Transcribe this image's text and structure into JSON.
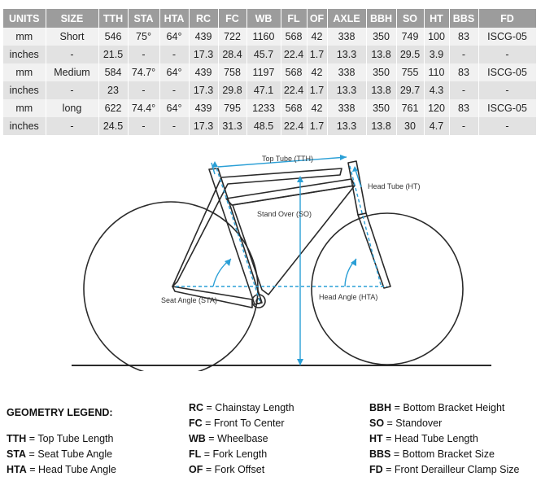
{
  "geometry_table": {
    "headers": [
      "UNITS",
      "SIZE",
      "TTH",
      "STA",
      "HTA",
      "RC",
      "FC",
      "WB",
      "FL",
      "OF",
      "AXLE",
      "BBH",
      "SO",
      "HT",
      "BBS",
      "FD"
    ],
    "rows": [
      [
        "mm",
        "Short",
        "546",
        "75°",
        "64°",
        "439",
        "722",
        "1160",
        "568",
        "42",
        "338",
        "350",
        "749",
        "100",
        "83",
        "ISCG-05"
      ],
      [
        "inches",
        "-",
        "21.5",
        "-",
        "-",
        "17.3",
        "28.4",
        "45.7",
        "22.4",
        "1.7",
        "13.3",
        "13.8",
        "29.5",
        "3.9",
        "-",
        "-"
      ],
      [
        "mm",
        "Medium",
        "584",
        "74.7°",
        "64°",
        "439",
        "758",
        "1197",
        "568",
        "42",
        "338",
        "350",
        "755",
        "110",
        "83",
        "ISCG-05"
      ],
      [
        "inches",
        "-",
        "23",
        "-",
        "-",
        "17.3",
        "29.8",
        "47.1",
        "22.4",
        "1.7",
        "13.3",
        "13.8",
        "29.7",
        "4.3",
        "-",
        "-"
      ],
      [
        "mm",
        "long",
        "622",
        "74.4°",
        "64°",
        "439",
        "795",
        "1233",
        "568",
        "42",
        "338",
        "350",
        "761",
        "120",
        "83",
        "ISCG-05"
      ],
      [
        "inches",
        "-",
        "24.5",
        "-",
        "-",
        "17.3",
        "31.3",
        "48.5",
        "22.4",
        "1.7",
        "13.3",
        "13.8",
        "30",
        "4.7",
        "-",
        "-"
      ]
    ]
  },
  "diagram": {
    "labels": {
      "top_tube": "Top Tube (TTH)",
      "head_tube": "Head Tube (HT)",
      "stand_over": "Stand Over (SO)",
      "seat_angle": "Seat Angle (STA)",
      "head_angle": "Head Angle (HTA)"
    },
    "colors": {
      "frame": "#2a2a2a",
      "dimension": "#2a9fd6"
    }
  },
  "legend": {
    "title": "GEOMETRY LEGEND:",
    "col1": [
      {
        "abbr": "TTH",
        "text": " = Top Tube Length"
      },
      {
        "abbr": "STA",
        "text": " = Seat Tube Angle"
      },
      {
        "abbr": "HTA",
        "text": " = Head Tube Angle"
      }
    ],
    "col2": [
      {
        "abbr": "RC",
        "text": " = Chainstay Length"
      },
      {
        "abbr": "FC",
        "text": " = Front To Center"
      },
      {
        "abbr": "WB",
        "text": " = Wheelbase"
      },
      {
        "abbr": "FL",
        "text": " = Fork Length"
      },
      {
        "abbr": "OF",
        "text": " = Fork Offset"
      }
    ],
    "col3": [
      {
        "abbr": "BBH",
        "text": " = Bottom Bracket Height"
      },
      {
        "abbr": "SO",
        "text": " = Standover"
      },
      {
        "abbr": "HT",
        "text": " = Head Tube Length"
      },
      {
        "abbr": "BBS",
        "text": " = Bottom Bracket Size"
      },
      {
        "abbr": "FD",
        "text": " = Front Derailleur Clamp Size"
      }
    ]
  }
}
